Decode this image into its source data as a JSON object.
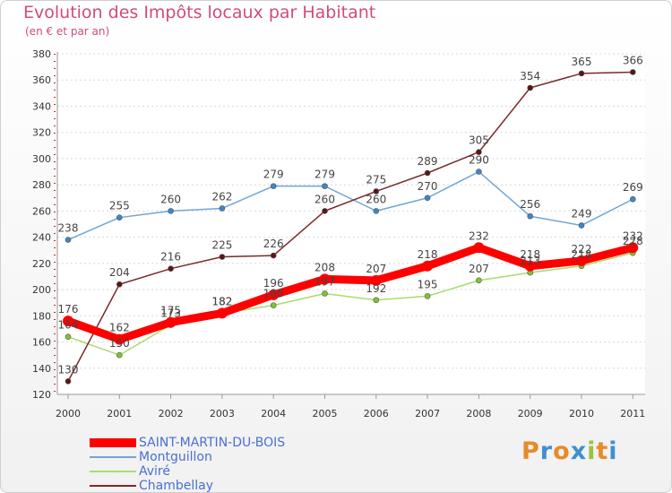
{
  "title": "Evolution des Impôts locaux par Habitant",
  "subtitle": "(en € et par an)",
  "brand": {
    "text": "Proxiti",
    "colors": [
      "#e88a2a",
      "#3f8fd1",
      "#e88a2a",
      "#3f8fd1",
      "#9bc23c",
      "#e88a2a",
      "#3f8fd1"
    ]
  },
  "chart_data": {
    "type": "line",
    "title": "Evolution des Impôts locaux par Habitant",
    "subtitle": "(en € et par an)",
    "xlabel": "",
    "ylabel": "",
    "x": [
      "2000",
      "2001",
      "2002",
      "2003",
      "2004",
      "2005",
      "2006",
      "2007",
      "2008",
      "2009",
      "2010",
      "2011"
    ],
    "ylim": [
      120,
      380
    ],
    "yticks": [
      120,
      140,
      160,
      180,
      200,
      220,
      240,
      260,
      280,
      300,
      320,
      340,
      360,
      380
    ],
    "grid": "horizontal dotted",
    "legend": "bottom-left",
    "series": [
      {
        "name": "SAINT-MARTIN-DU-BOIS",
        "color": "#ff0000",
        "values": [
          176,
          162,
          175,
          182,
          196,
          208,
          207,
          218,
          232,
          218,
          222,
          232
        ]
      },
      {
        "name": "Montguillon",
        "color": "#6fa6d6",
        "values": [
          238,
          255,
          260,
          262,
          279,
          279,
          260,
          270,
          290,
          256,
          249,
          269
        ]
      },
      {
        "name": "Aviré",
        "color": "#a8dc6e",
        "values": [
          164,
          150,
          173,
          182,
          188,
          197,
          192,
          195,
          207,
          213,
          218,
          228
        ]
      },
      {
        "name": "Chambellay",
        "color": "#7a2a2a",
        "values": [
          130,
          204,
          216,
          225,
          226,
          260,
          275,
          289,
          305,
          354,
          365,
          366
        ]
      }
    ]
  }
}
